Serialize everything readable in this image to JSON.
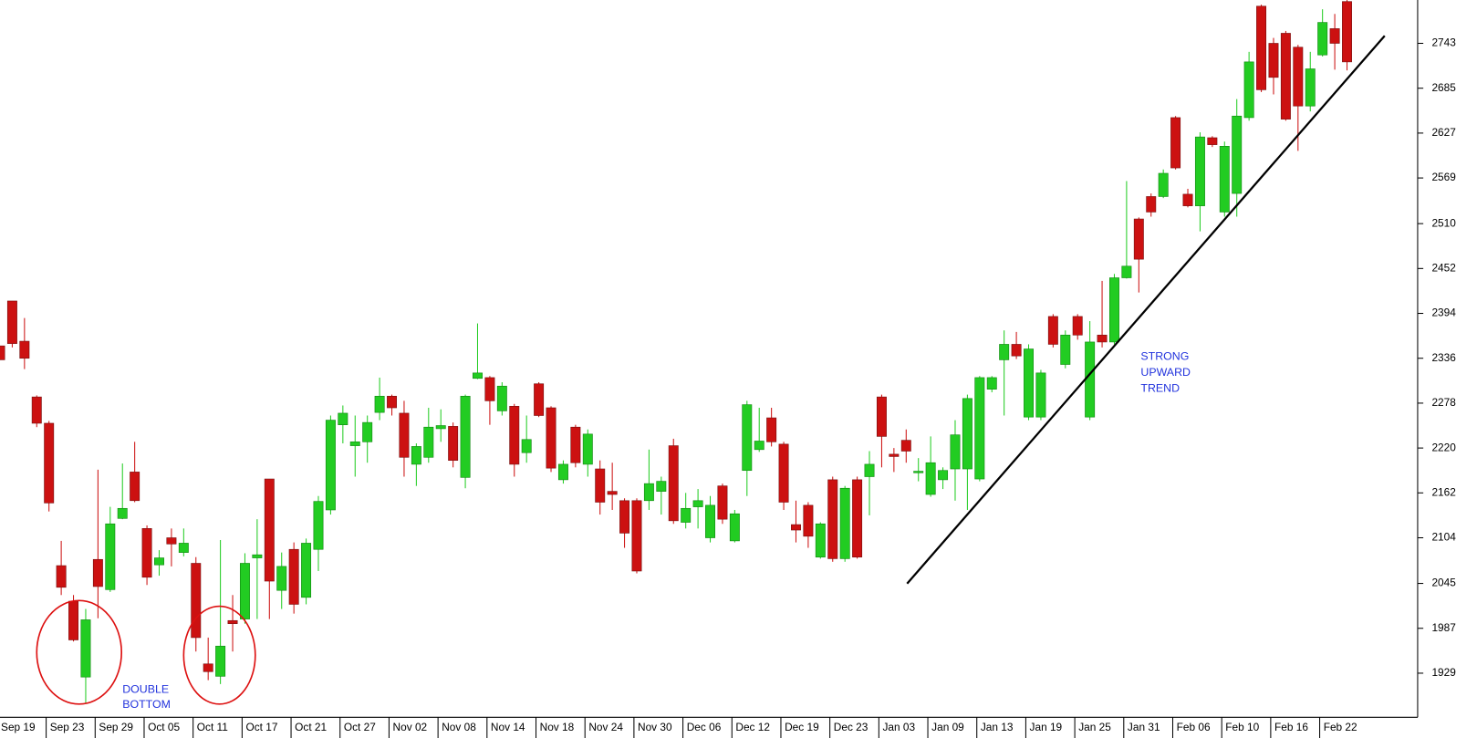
{
  "chart_data": {
    "type": "candlestick",
    "up_color": "#22cc22",
    "down_color": "#cc1111",
    "categories": [
      "Sep 19",
      null,
      null,
      null,
      "Sep 23",
      null,
      null,
      null,
      "Sep 29",
      null,
      null,
      null,
      "Oct 05",
      null,
      null,
      null,
      "Oct 11",
      null,
      null,
      null,
      "Oct 17",
      null,
      null,
      null,
      "Oct 21",
      null,
      null,
      null,
      "Oct 27",
      null,
      null,
      null,
      "Nov 02",
      null,
      null,
      null,
      "Nov 08",
      null,
      null,
      null,
      "Nov 14",
      null,
      null,
      null,
      "Nov 18",
      null,
      null,
      null,
      "Nov 24",
      null,
      null,
      null,
      "Nov 30",
      null,
      null,
      null,
      "Dec 06",
      null,
      null,
      null,
      "Dec 12",
      null,
      null,
      null,
      "Dec 19",
      null,
      null,
      null,
      "Dec 23",
      null,
      null,
      null,
      "Jan 03",
      null,
      null,
      null,
      "Jan 09",
      null,
      null,
      null,
      "Jan 13",
      null,
      null,
      null,
      "Jan 19",
      null,
      null,
      null,
      "Jan 25",
      null,
      null,
      null,
      "Jan 31",
      null,
      null,
      null,
      "Feb 06",
      null,
      null,
      null,
      "Feb 10",
      null,
      null,
      null,
      "Feb 16",
      null,
      null,
      null,
      "Feb 22",
      null,
      null
    ],
    "open": [
      2352,
      2410,
      2358,
      2286,
      2252,
      2068,
      2022,
      1924,
      2076,
      2037,
      2129,
      2189,
      2116,
      2069,
      2104,
      2085,
      2071,
      1941,
      1925,
      1997,
      1999,
      2078,
      2180,
      2036,
      2089,
      2027,
      2089,
      2140,
      2250,
      2223,
      2228,
      2266,
      2287,
      2265,
      2199,
      2208,
      2245,
      2248,
      2182,
      2310,
      2311,
      2268,
      2274,
      2214,
      2303,
      2272,
      2179,
      2247,
      2199,
      2193,
      2164,
      2152,
      2152,
      2152,
      2164,
      2223,
      2124,
      2144,
      2104,
      2171,
      2100,
      2191,
      2218,
      2259,
      2225,
      2121,
      2146,
      2079,
      2179,
      2077,
      2179,
      2183,
      2286,
      2212,
      2230,
      2188,
      2160,
      2179,
      2193,
      2193,
      2180,
      2296,
      2334,
      2354,
      2260,
      2260,
      2390,
      2328,
      2390,
      2260,
      2366,
      2357,
      2440,
      2516,
      2545,
      2545,
      2647,
      2548,
      2533,
      2621,
      2525,
      2549,
      2647,
      2791,
      2743,
      2756,
      2738,
      2662,
      2728,
      2762,
      2797
    ],
    "high": [
      2352,
      2410,
      2388,
      2288,
      2255,
      2100,
      2030,
      2012,
      2192,
      2144,
      2200,
      2228,
      2120,
      2088,
      2116,
      2116,
      2079,
      1975,
      2101,
      2030,
      2084,
      2128,
      2180,
      2085,
      2098,
      2103,
      2158,
      2262,
      2275,
      2262,
      2262,
      2311,
      2289,
      2281,
      2226,
      2272,
      2270,
      2253,
      2289,
      2381,
      2313,
      2305,
      2277,
      2262,
      2305,
      2274,
      2204,
      2250,
      2244,
      2204,
      2201,
      2155,
      2155,
      2218,
      2183,
      2232,
      2162,
      2167,
      2158,
      2174,
      2140,
      2281,
      2272,
      2272,
      2228,
      2152,
      2150,
      2124,
      2183,
      2171,
      2183,
      2216,
      2289,
      2220,
      2244,
      2207,
      2235,
      2195,
      2256,
      2289,
      2313,
      2313,
      2372,
      2370,
      2354,
      2321,
      2393,
      2372,
      2393,
      2384,
      2436,
      2445,
      2565,
      2518,
      2549,
      2580,
      2649,
      2555,
      2628,
      2623,
      2616,
      2671,
      2732,
      2793,
      2750,
      2759,
      2741,
      2732,
      2787,
      2781,
      2799
    ],
    "low": [
      2334,
      2350,
      2322,
      2247,
      2138,
      2030,
      1970,
      1890,
      2000,
      2034,
      2128,
      2150,
      2043,
      2055,
      2067,
      2080,
      1957,
      1920,
      1915,
      1957,
      1993,
      1999,
      1999,
      2012,
      2006,
      2018,
      2061,
      2134,
      2226,
      2183,
      2201,
      2256,
      2262,
      2183,
      2171,
      2201,
      2228,
      2195,
      2168,
      2309,
      2250,
      2262,
      2183,
      2201,
      2260,
      2189,
      2174,
      2195,
      2183,
      2134,
      2140,
      2091,
      2058,
      2140,
      2134,
      2122,
      2116,
      2116,
      2098,
      2122,
      2098,
      2158,
      2215,
      2222,
      2140,
      2098,
      2091,
      2077,
      2073,
      2073,
      2077,
      2133,
      2195,
      2189,
      2201,
      2177,
      2157,
      2167,
      2152,
      2140,
      2177,
      2292,
      2262,
      2335,
      2256,
      2256,
      2350,
      2323,
      2360,
      2256,
      2350,
      2354,
      2439,
      2421,
      2519,
      2543,
      2580,
      2531,
      2500,
      2609,
      2519,
      2519,
      2643,
      2680,
      2677,
      2643,
      2604,
      2655,
      2726,
      2709,
      2708
    ],
    "close": [
      2334,
      2355,
      2336,
      2252,
      2149,
      2040,
      1972,
      1998,
      2041,
      2122,
      2142,
      2152,
      2053,
      2078,
      2096,
      2097,
      1975,
      1931,
      1964,
      1993,
      2071,
      2082,
      2048,
      2067,
      2018,
      2097,
      2151,
      2256,
      2265,
      2228,
      2253,
      2287,
      2272,
      2208,
      2222,
      2247,
      2249,
      2204,
      2287,
      2317,
      2281,
      2300,
      2199,
      2231,
      2262,
      2194,
      2199,
      2201,
      2238,
      2150,
      2160,
      2110,
      2061,
      2174,
      2177,
      2126,
      2142,
      2152,
      2146,
      2128,
      2135,
      2276,
      2229,
      2228,
      2150,
      2114,
      2106,
      2122,
      2077,
      2168,
      2079,
      2199,
      2235,
      2209,
      2216,
      2190,
      2201,
      2191,
      2237,
      2284,
      2311,
      2311,
      2354,
      2339,
      2348,
      2317,
      2354,
      2366,
      2366,
      2357,
      2357,
      2440,
      2455,
      2464,
      2525,
      2575,
      2582,
      2533,
      2622,
      2612,
      2610,
      2649,
      2719,
      2683,
      2699,
      2645,
      2662,
      2710,
      2770,
      2743,
      2719
    ],
    "ylim": [
      1872,
      2799
    ],
    "yticks": [
      1929,
      1987,
      2045,
      2104,
      2162,
      2220,
      2278,
      2336,
      2394,
      2452,
      2510,
      2569,
      2627,
      2685,
      2743
    ],
    "annotations": [
      {
        "lines": [
          "DOUBLE",
          "BOTTOM"
        ]
      },
      {
        "lines": [
          "STRONG",
          "UPWARD",
          "TREND"
        ]
      }
    ]
  }
}
